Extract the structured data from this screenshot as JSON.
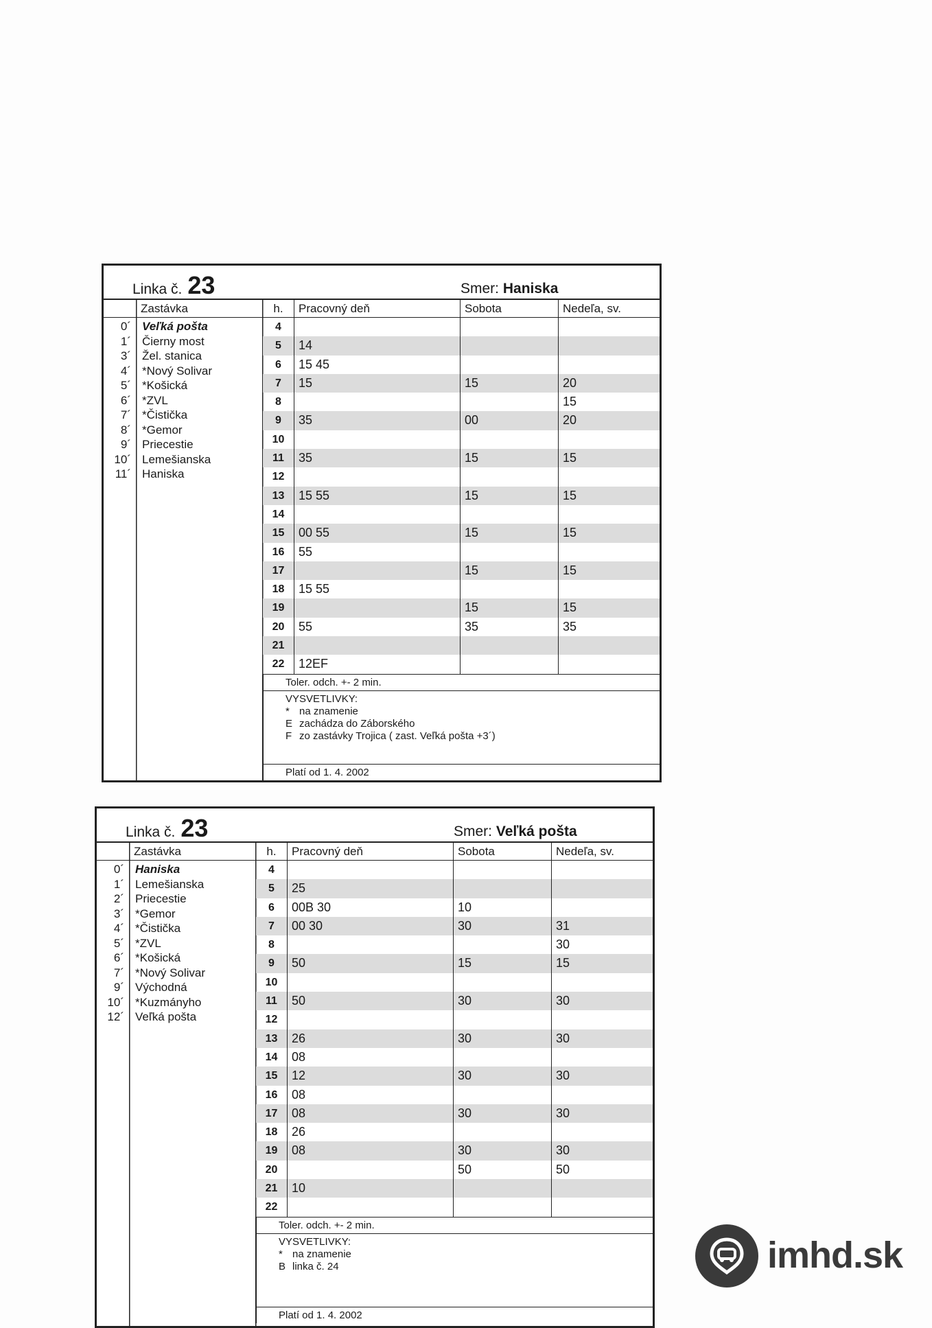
{
  "timetables": [
    {
      "linka_label": "Linka č.",
      "linka_number": "23",
      "smer_label": "Smer:",
      "smer_value": "Haniska",
      "headers": {
        "stop": "Zastávka",
        "hour": "h.",
        "workday": "Pracovný deň",
        "saturday": "Sobota",
        "sunday": "Nedeľa, sv."
      },
      "stops": [
        {
          "min": "0´",
          "name": "Veľká pošta"
        },
        {
          "min": "1´",
          "name": " Čierny most"
        },
        {
          "min": "3´",
          "name": " Žel. stanica"
        },
        {
          "min": "4´",
          "name": "*Nový Solivar"
        },
        {
          "min": "5´",
          "name": "*Košická"
        },
        {
          "min": "6´",
          "name": "*ZVL"
        },
        {
          "min": "7´",
          "name": "*Čistička"
        },
        {
          "min": "8´",
          "name": "*Gemor"
        },
        {
          "min": "9´",
          "name": " Priecestie"
        },
        {
          "min": "10´",
          "name": " Lemešianska"
        },
        {
          "min": "11´",
          "name": " Haniska"
        }
      ],
      "rows": [
        {
          "h": "4",
          "work": "",
          "sat": "",
          "sun": ""
        },
        {
          "h": "5",
          "work": "14",
          "sat": "",
          "sun": ""
        },
        {
          "h": "6",
          "work": "15 45",
          "sat": "",
          "sun": ""
        },
        {
          "h": "7",
          "work": "15",
          "sat": "15",
          "sun": "20"
        },
        {
          "h": "8",
          "work": "",
          "sat": "",
          "sun": "15"
        },
        {
          "h": "9",
          "work": "35",
          "sat": "00",
          "sun": "20"
        },
        {
          "h": "10",
          "work": "",
          "sat": "",
          "sun": ""
        },
        {
          "h": "11",
          "work": "35",
          "sat": "15",
          "sun": "15"
        },
        {
          "h": "12",
          "work": "",
          "sat": "",
          "sun": ""
        },
        {
          "h": "13",
          "work": "15 55",
          "sat": "15",
          "sun": "15"
        },
        {
          "h": "14",
          "work": "",
          "sat": "",
          "sun": ""
        },
        {
          "h": "15",
          "work": "00 55",
          "sat": "15",
          "sun": "15"
        },
        {
          "h": "16",
          "work": "55",
          "sat": "",
          "sun": ""
        },
        {
          "h": "17",
          "work": "",
          "sat": "15",
          "sun": "15"
        },
        {
          "h": "18",
          "work": "15 55",
          "sat": "",
          "sun": ""
        },
        {
          "h": "19",
          "work": "",
          "sat": "15",
          "sun": "15"
        },
        {
          "h": "20",
          "work": "55",
          "sat": "35",
          "sun": "35"
        },
        {
          "h": "21",
          "work": "",
          "sat": "",
          "sun": ""
        },
        {
          "h": "22",
          "work": "12EF",
          "sat": "",
          "sun": ""
        }
      ],
      "tolerance": "Toler. odch. +- 2 min.",
      "legend_title": "VYSVETLIVKY:",
      "legend": [
        {
          "key": "*",
          "text": "na znamenie"
        },
        {
          "key": "E",
          "text": "zachádza do Záborského"
        },
        {
          "key": "F",
          "text": "zo zastávky Trojica ( zast. Veľká pošta +3´)"
        }
      ],
      "valid_from": "Platí od 1. 4. 2002"
    },
    {
      "linka_label": "Linka č.",
      "linka_number": "23",
      "smer_label": "Smer:",
      "smer_value": "Veľká pošta",
      "headers": {
        "stop": "Zastávka",
        "hour": "h.",
        "workday": "Pracovný deň",
        "saturday": "Sobota",
        "sunday": "Nedeľa, sv."
      },
      "stops": [
        {
          "min": "0´",
          "name": "Haniska"
        },
        {
          "min": "1´",
          "name": " Lemešianska"
        },
        {
          "min": "2´",
          "name": " Priecestie"
        },
        {
          "min": "3´",
          "name": "*Gemor"
        },
        {
          "min": "4´",
          "name": "*Čistička"
        },
        {
          "min": "5´",
          "name": "*ZVL"
        },
        {
          "min": "6´",
          "name": "*Košická"
        },
        {
          "min": "7´",
          "name": "*Nový Solivar"
        },
        {
          "min": "9´",
          "name": " Východná"
        },
        {
          "min": "10´",
          "name": "*Kuzmányho"
        },
        {
          "min": "12´",
          "name": " Veľká pošta"
        }
      ],
      "rows": [
        {
          "h": "4",
          "work": "",
          "sat": "",
          "sun": ""
        },
        {
          "h": "5",
          "work": "25",
          "sat": "",
          "sun": ""
        },
        {
          "h": "6",
          "work": "00B 30",
          "sat": "10",
          "sun": ""
        },
        {
          "h": "7",
          "work": "00 30",
          "sat": "30",
          "sun": "31"
        },
        {
          "h": "8",
          "work": "",
          "sat": "",
          "sun": "30"
        },
        {
          "h": "9",
          "work": "50",
          "sat": "15",
          "sun": "15"
        },
        {
          "h": "10",
          "work": "",
          "sat": "",
          "sun": ""
        },
        {
          "h": "11",
          "work": "50",
          "sat": "30",
          "sun": "30"
        },
        {
          "h": "12",
          "work": "",
          "sat": "",
          "sun": ""
        },
        {
          "h": "13",
          "work": "26",
          "sat": "30",
          "sun": "30"
        },
        {
          "h": "14",
          "work": "08",
          "sat": "",
          "sun": ""
        },
        {
          "h": "15",
          "work": "12",
          "sat": "30",
          "sun": "30"
        },
        {
          "h": "16",
          "work": "08",
          "sat": "",
          "sun": ""
        },
        {
          "h": "17",
          "work": "08",
          "sat": "30",
          "sun": "30"
        },
        {
          "h": "18",
          "work": "26",
          "sat": "",
          "sun": ""
        },
        {
          "h": "19",
          "work": "08",
          "sat": "30",
          "sun": "30"
        },
        {
          "h": "20",
          "work": "",
          "sat": "50",
          "sun": "50"
        },
        {
          "h": "21",
          "work": "10",
          "sat": "",
          "sun": ""
        },
        {
          "h": "22",
          "work": "",
          "sat": "",
          "sun": ""
        }
      ],
      "tolerance": "Toler. odch. +- 2 min.",
      "legend_title": "VYSVETLIVKY:",
      "legend": [
        {
          "key": "*",
          "text": "na znamenie"
        },
        {
          "key": "B",
          "text": "linka č. 24"
        }
      ],
      "valid_from": "Platí od 1. 4. 2002"
    }
  ],
  "watermark": {
    "brand": "imhd.sk",
    "icon": "imhd-bus-pin-icon",
    "color": "#3a3a3a"
  },
  "stripe_color": "#dcdcdc"
}
